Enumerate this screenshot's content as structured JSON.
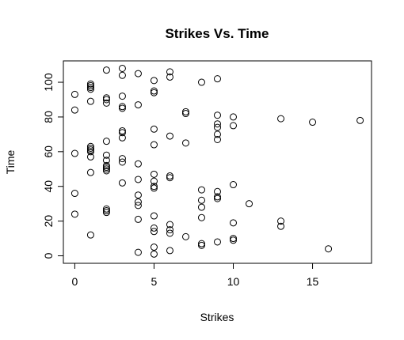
{
  "chart_data": {
    "type": "scatter",
    "title": "Strikes Vs. Time",
    "xlabel": "Strikes",
    "ylabel": "Time",
    "xlim": [
      -0.72,
      18.72
    ],
    "ylim": [
      -4.32,
      112.32
    ],
    "xticks": [
      0,
      5,
      10,
      15
    ],
    "yticks": [
      0,
      20,
      40,
      60,
      80,
      100
    ],
    "grid": false,
    "marker": "open-circle",
    "color": "#000000",
    "points": [
      [
        0,
        93
      ],
      [
        0,
        84
      ],
      [
        0,
        59
      ],
      [
        0,
        36
      ],
      [
        0,
        24
      ],
      [
        1,
        99
      ],
      [
        1,
        98
      ],
      [
        1,
        97
      ],
      [
        1,
        96
      ],
      [
        1,
        89
      ],
      [
        1,
        63
      ],
      [
        1,
        62
      ],
      [
        1,
        61
      ],
      [
        1,
        60
      ],
      [
        1,
        57
      ],
      [
        1,
        48
      ],
      [
        1,
        12
      ],
      [
        2,
        107
      ],
      [
        2,
        91
      ],
      [
        2,
        90
      ],
      [
        2,
        88
      ],
      [
        2,
        66
      ],
      [
        2,
        58
      ],
      [
        2,
        55
      ],
      [
        2,
        52
      ],
      [
        2,
        51
      ],
      [
        2,
        50
      ],
      [
        2,
        49
      ],
      [
        2,
        27
      ],
      [
        2,
        26
      ],
      [
        2,
        25
      ],
      [
        3,
        108
      ],
      [
        3,
        104
      ],
      [
        3,
        92
      ],
      [
        3,
        86
      ],
      [
        3,
        85
      ],
      [
        3,
        72
      ],
      [
        3,
        71
      ],
      [
        3,
        68
      ],
      [
        3,
        56
      ],
      [
        3,
        54
      ],
      [
        3,
        42
      ],
      [
        4,
        105
      ],
      [
        4,
        87
      ],
      [
        4,
        53
      ],
      [
        4,
        44
      ],
      [
        4,
        35
      ],
      [
        4,
        31
      ],
      [
        4,
        29
      ],
      [
        4,
        21
      ],
      [
        4,
        2
      ],
      [
        5,
        101
      ],
      [
        5,
        95
      ],
      [
        5,
        94
      ],
      [
        5,
        73
      ],
      [
        5,
        64
      ],
      [
        5,
        47
      ],
      [
        5,
        43
      ],
      [
        5,
        40
      ],
      [
        5,
        39
      ],
      [
        5,
        23
      ],
      [
        5,
        16
      ],
      [
        5,
        14
      ],
      [
        5,
        5
      ],
      [
        5,
        1
      ],
      [
        6,
        106
      ],
      [
        6,
        103
      ],
      [
        6,
        69
      ],
      [
        6,
        46
      ],
      [
        6,
        45
      ],
      [
        6,
        18
      ],
      [
        6,
        15
      ],
      [
        6,
        13
      ],
      [
        6,
        3
      ],
      [
        7,
        83
      ],
      [
        7,
        82
      ],
      [
        7,
        65
      ],
      [
        7,
        11
      ],
      [
        8,
        100
      ],
      [
        8,
        38
      ],
      [
        8,
        32
      ],
      [
        8,
        28
      ],
      [
        8,
        22
      ],
      [
        8,
        7
      ],
      [
        8,
        6
      ],
      [
        9,
        102
      ],
      [
        9,
        81
      ],
      [
        9,
        76
      ],
      [
        9,
        74
      ],
      [
        9,
        70
      ],
      [
        9,
        67
      ],
      [
        9,
        37
      ],
      [
        9,
        34
      ],
      [
        9,
        33
      ],
      [
        9,
        8
      ],
      [
        10,
        80
      ],
      [
        10,
        75
      ],
      [
        10,
        41
      ],
      [
        10,
        19
      ],
      [
        10,
        10
      ],
      [
        10,
        9
      ],
      [
        11,
        30
      ],
      [
        13,
        79
      ],
      [
        13,
        20
      ],
      [
        13,
        17
      ],
      [
        15,
        77
      ],
      [
        16,
        4
      ],
      [
        18,
        78
      ]
    ]
  }
}
